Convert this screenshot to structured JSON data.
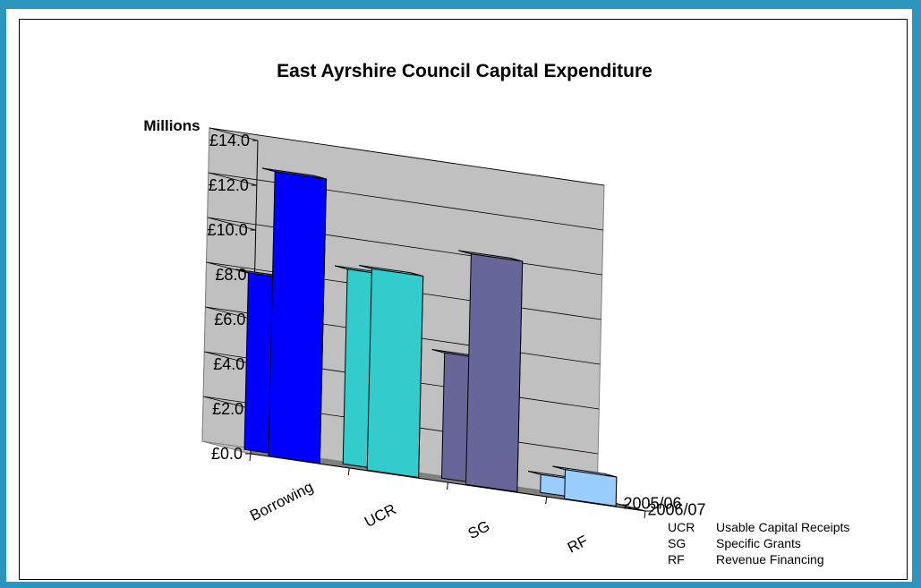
{
  "chart_data": {
    "type": "bar",
    "title": "East Ayrshire Council Capital Expenditure",
    "ylabel": "Millions",
    "xlabel": "",
    "ylim": [
      0,
      14
    ],
    "yticks": [
      "£0.0",
      "£2.0",
      "£4.0",
      "£6.0",
      "£8.0",
      "£10.0",
      "£12.0",
      "£14.0"
    ],
    "categories": [
      "Borrowing",
      "UCR",
      "SG",
      "RF"
    ],
    "series": [
      {
        "name": "2006/07",
        "values": [
          12.7,
          9.0,
          10.3,
          1.3
        ]
      },
      {
        "name": "2005/06",
        "values": [
          7.9,
          8.7,
          5.6,
          0.8
        ]
      }
    ],
    "colors": [
      "#0000ff",
      "#33cccc",
      "#666699",
      "#99ccff"
    ],
    "grid": true,
    "legend_notes": [
      {
        "abbr": "UCR",
        "text": "Usable Capital Receipts"
      },
      {
        "abbr": "SG",
        "text": "Specific Grants"
      },
      {
        "abbr": "RF",
        "text": "Revenue Financing"
      }
    ]
  }
}
